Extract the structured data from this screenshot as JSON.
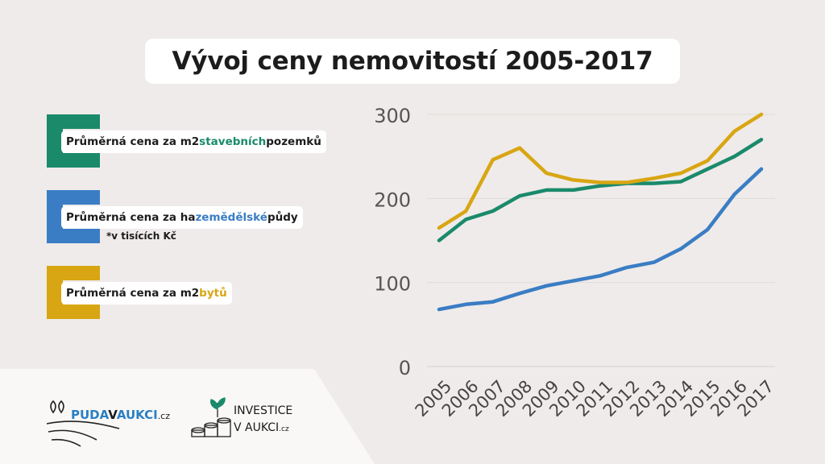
{
  "title": "Vývoj ceny nemovitostí 2005-2017",
  "legend": [
    {
      "prefix": "Průměrná cena za m2 ",
      "highlight": "stavebních",
      "suffix": " pozemků",
      "color": "#1a8a6b"
    },
    {
      "prefix": "Průměrná cena za ha ",
      "highlight": "zemědělské",
      "suffix": " půdy",
      "color": "#3a7dc4"
    },
    {
      "prefix": "Průměrná cena za m2 ",
      "highlight": "bytů",
      "suffix": "",
      "color": "#d8a613"
    }
  ],
  "note": "*v tisících Kč",
  "logos": {
    "puda": {
      "part1": "PUDA",
      "part2": "V",
      "part3": "AUKCI",
      "suffix": ".cz"
    },
    "investice": {
      "line1": "INVESTICE",
      "line2": "V AUKCI",
      "suffix": ".cz"
    }
  },
  "chart_data": {
    "type": "line",
    "title": "Vývoj ceny nemovitostí 2005-2017",
    "xlabel": "",
    "ylabel": "",
    "x": [
      "2005",
      "2006",
      "2007",
      "2008",
      "2009",
      "2010",
      "2011",
      "2012",
      "2013",
      "2014",
      "2015",
      "2016",
      "2017"
    ],
    "ylim": [
      0,
      300
    ],
    "yticks": [
      0,
      100,
      200,
      300
    ],
    "grid": true,
    "series": [
      {
        "name": "Průměrná cena za m2 stavebních pozemků",
        "color": "#1a8a6b",
        "values": [
          150,
          175,
          185,
          203,
          210,
          210,
          215,
          218,
          218,
          220,
          235,
          250,
          270
        ]
      },
      {
        "name": "Průměrná cena za ha zemědělské půdy",
        "color": "#3a7dc4",
        "values": [
          68,
          74,
          77,
          87,
          96,
          102,
          108,
          118,
          124,
          140,
          163,
          205,
          235
        ]
      },
      {
        "name": "Průměrná cena za m2 bytů",
        "color": "#d8a613",
        "values": [
          165,
          185,
          246,
          260,
          230,
          222,
          219,
          219,
          224,
          230,
          245,
          280,
          300
        ]
      }
    ]
  }
}
